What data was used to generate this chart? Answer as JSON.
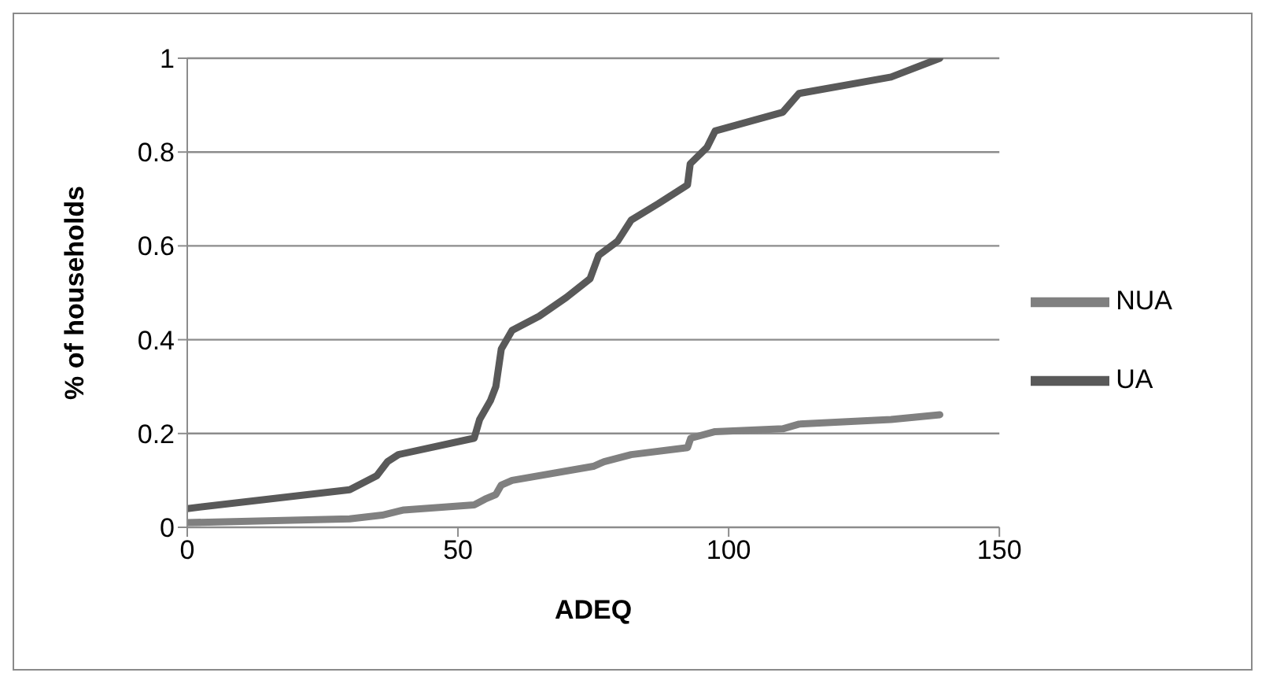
{
  "chart_data": {
    "type": "line",
    "xlabel": "ADEQ",
    "ylabel": "% of households",
    "xlim": [
      0,
      150
    ],
    "xticks": [
      0,
      50,
      100,
      150
    ],
    "ylim": [
      0,
      1
    ],
    "yticks": [
      0,
      0.2,
      0.4,
      0.6,
      0.8,
      1
    ],
    "grid": "y",
    "legend": "right",
    "marker": "none",
    "line_style": "solid",
    "series": [
      {
        "name": "UA",
        "color": "#595959",
        "x": [
          0,
          30,
          35,
          37,
          39,
          53,
          54,
          56,
          57,
          58,
          60,
          65,
          70,
          74.4,
          76,
          79.5,
          82,
          87,
          92.4,
          92.9,
          96,
          97.5,
          110,
          113,
          130,
          139
        ],
        "values": [
          0.04,
          0.08,
          0.11,
          0.14,
          0.155,
          0.19,
          0.23,
          0.27,
          0.3,
          0.38,
          0.42,
          0.45,
          0.49,
          0.53,
          0.58,
          0.61,
          0.655,
          0.69,
          0.73,
          0.775,
          0.81,
          0.845,
          0.885,
          0.925,
          0.96,
          1
        ]
      },
      {
        "name": "NUA",
        "color": "#808080",
        "x": [
          0,
          30,
          36,
          40,
          53,
          55,
          57,
          58,
          60,
          75,
          77,
          82,
          92.4,
          93,
          97.5,
          110,
          113,
          130,
          139
        ],
        "values": [
          0.01,
          0.018,
          0.026,
          0.037,
          0.048,
          0.06,
          0.07,
          0.09,
          0.1,
          0.13,
          0.14,
          0.155,
          0.17,
          0.19,
          0.204,
          0.21,
          0.22,
          0.23,
          0.24
        ]
      }
    ]
  }
}
